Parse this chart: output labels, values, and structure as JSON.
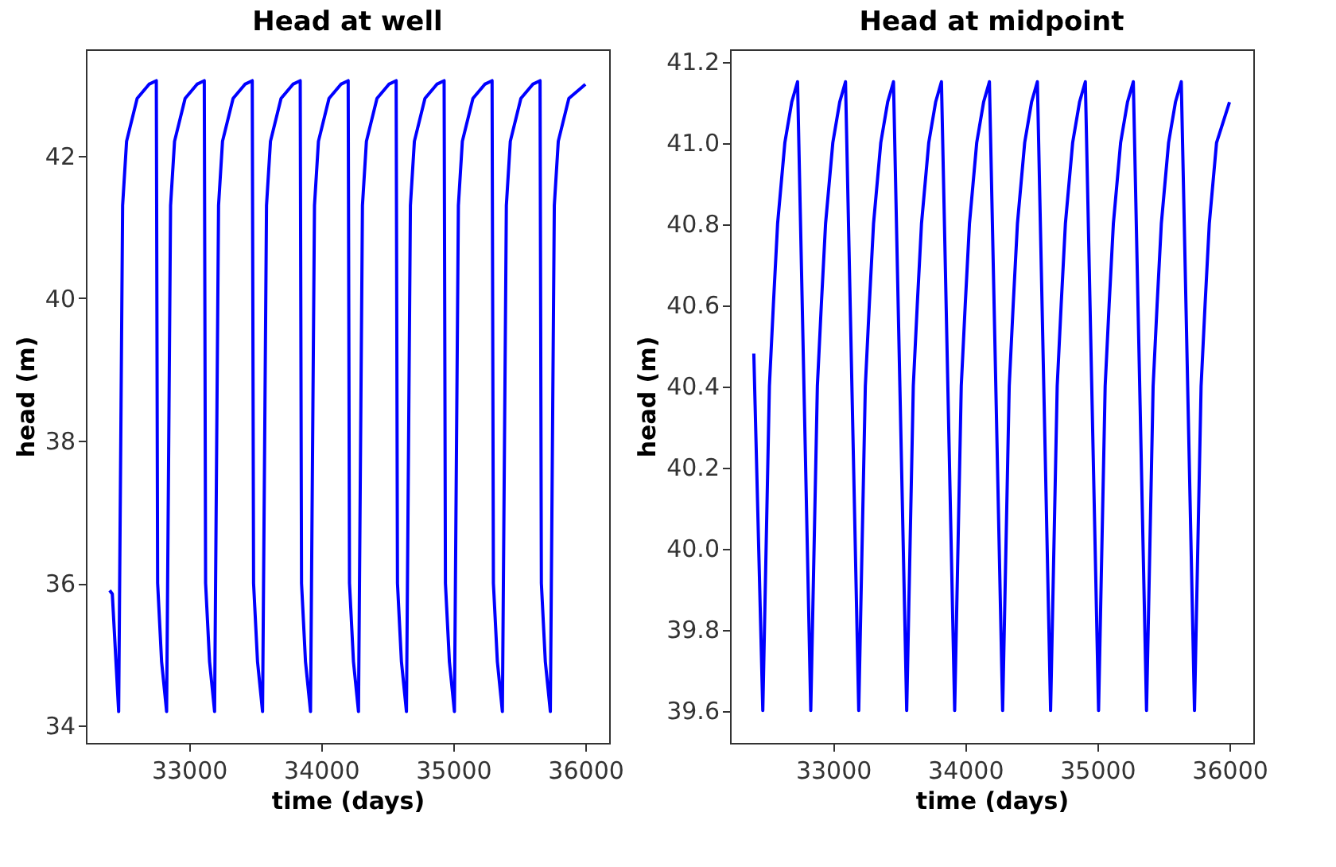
{
  "chart_data": [
    {
      "type": "line",
      "title": "Head at well",
      "xlabel": "time (days)",
      "ylabel": "head (m)",
      "xlim": [
        32220,
        36180
      ],
      "ylim": [
        33.76,
        43.49
      ],
      "xticks": [
        33000,
        34000,
        35000,
        36000
      ],
      "yticks": [
        34,
        36,
        38,
        40,
        42
      ],
      "series": [
        {
          "color": "#0000ff",
          "x": [
            32400,
            32420,
            32468,
            32498,
            32528,
            32608,
            32698,
            32753,
            32763,
            32793,
            32831,
            32861,
            32891,
            32971,
            33061,
            33116,
            33126,
            33156,
            33194,
            33224,
            33254,
            33334,
            33424,
            33479,
            33489,
            33519,
            33557,
            33587,
            33617,
            33697,
            33787,
            33842,
            33852,
            33882,
            33920,
            33950,
            33980,
            34060,
            34150,
            34205,
            34215,
            34245,
            34283,
            34313,
            34343,
            34423,
            34513,
            34568,
            34578,
            34608,
            34646,
            34676,
            34706,
            34786,
            34876,
            34931,
            34941,
            34971,
            35009,
            35039,
            35069,
            35149,
            35239,
            35294,
            35304,
            35334,
            35372,
            35402,
            35432,
            35512,
            35602,
            35657,
            35667,
            35697,
            35735,
            35765,
            35795,
            35875,
            36000
          ],
          "values": [
            35.9,
            35.85,
            34.2,
            41.3,
            42.2,
            42.8,
            43.0,
            43.05,
            36.0,
            34.9,
            34.2,
            41.3,
            42.2,
            42.8,
            43.0,
            43.05,
            36.0,
            34.9,
            34.2,
            41.3,
            42.2,
            42.8,
            43.0,
            43.05,
            36.0,
            34.9,
            34.2,
            41.3,
            42.2,
            42.8,
            43.0,
            43.05,
            36.0,
            34.9,
            34.2,
            41.3,
            42.2,
            42.8,
            43.0,
            43.05,
            36.0,
            34.9,
            34.2,
            41.3,
            42.2,
            42.8,
            43.0,
            43.05,
            36.0,
            34.9,
            34.2,
            41.3,
            42.2,
            42.8,
            43.0,
            43.05,
            36.0,
            34.9,
            34.2,
            41.3,
            42.2,
            42.8,
            43.0,
            43.05,
            36.0,
            34.9,
            34.2,
            41.3,
            42.2,
            42.8,
            43.0,
            43.05,
            36.0,
            34.9,
            34.2,
            41.3,
            42.2,
            42.8,
            43.0
          ]
        }
      ]
    },
    {
      "type": "line",
      "title": "Head at midpoint",
      "xlabel": "time (days)",
      "ylabel": "head (m)",
      "xlim": [
        32220,
        36180
      ],
      "ylim": [
        39.52,
        41.23
      ],
      "xticks": [
        33000,
        34000,
        35000,
        36000
      ],
      "yticks": [
        39.6,
        39.8,
        {
          "value": 40,
          "label": "40.0"
        },
        40.2,
        40.4,
        40.6,
        40.8,
        {
          "value": 41,
          "label": "41.0"
        },
        41.2
      ],
      "series": [
        {
          "color": "#0000ff",
          "x": [
            32400,
            32468,
            32518,
            32548,
            32580,
            32635,
            32687,
            32731,
            32831,
            32881,
            32911,
            32943,
            32998,
            33050,
            33094,
            33194,
            33244,
            33274,
            33306,
            33361,
            33413,
            33457,
            33557,
            33607,
            33637,
            33669,
            33724,
            33776,
            33820,
            33920,
            33970,
            34000,
            34032,
            34087,
            34139,
            34183,
            34283,
            34333,
            34363,
            34395,
            34450,
            34502,
            34546,
            34646,
            34696,
            34726,
            34758,
            34813,
            34865,
            34909,
            35009,
            35059,
            35089,
            35121,
            35176,
            35228,
            35272,
            35372,
            35422,
            35452,
            35484,
            35539,
            35591,
            35635,
            35735,
            35785,
            35815,
            35847,
            35902,
            36000
          ],
          "values": [
            40.48,
            39.6,
            40.4,
            40.6,
            40.8,
            41.0,
            41.1,
            41.15,
            39.6,
            40.4,
            40.6,
            40.8,
            41.0,
            41.1,
            41.15,
            39.6,
            40.4,
            40.6,
            40.8,
            41.0,
            41.1,
            41.15,
            39.6,
            40.4,
            40.6,
            40.8,
            41.0,
            41.1,
            41.15,
            39.6,
            40.4,
            40.6,
            40.8,
            41.0,
            41.1,
            41.15,
            39.6,
            40.4,
            40.6,
            40.8,
            41.0,
            41.1,
            41.15,
            39.6,
            40.4,
            40.6,
            40.8,
            41.0,
            41.1,
            41.15,
            39.6,
            40.4,
            40.6,
            40.8,
            41.0,
            41.1,
            41.15,
            39.6,
            40.4,
            40.6,
            40.8,
            41.0,
            41.1,
            41.15,
            39.6,
            40.4,
            40.6,
            40.8,
            41.0,
            41.1
          ]
        }
      ]
    }
  ]
}
